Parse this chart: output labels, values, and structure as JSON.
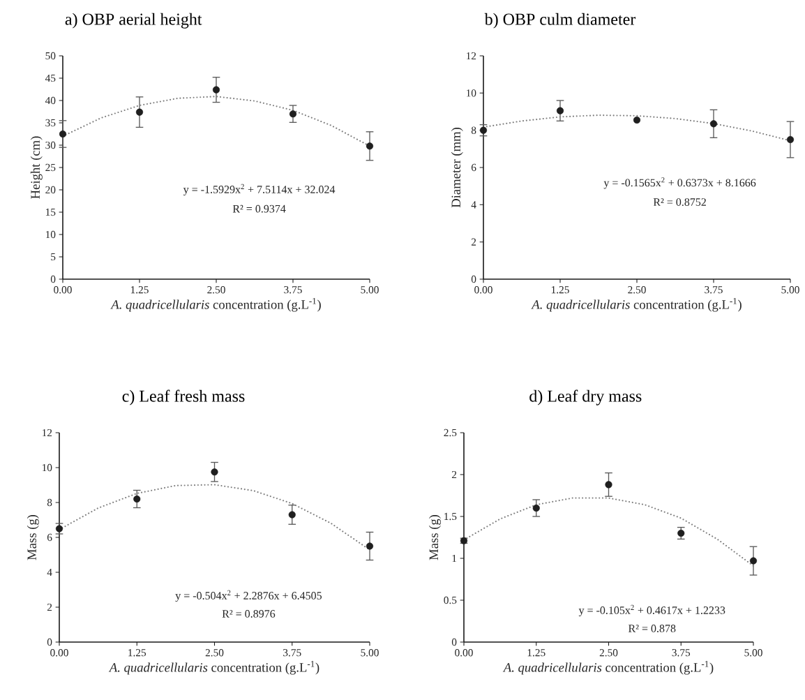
{
  "chart_data": [
    {
      "type": "scatter",
      "title": "a) OBP aerial height",
      "xlabel": "*A. quadricellularis* concentration (g.L$^{-1}$)",
      "ylabel": "Height (cm)",
      "xlim": [
        0,
        5
      ],
      "xticks": [
        {
          "value": 0,
          "label": "0.00"
        },
        {
          "value": 1.25,
          "label": "1.25"
        },
        {
          "value": 2.5,
          "label": "2.50"
        },
        {
          "value": 3.75,
          "label": "3.75"
        },
        {
          "value": 5,
          "label": "5.00"
        }
      ],
      "ylim": [
        0,
        50
      ],
      "yticks": [
        0,
        5,
        10,
        15,
        20,
        25,
        30,
        35,
        40,
        45,
        50
      ],
      "series": [
        {
          "marker": "circle",
          "color": "#1f1f1f",
          "x": [
            0,
            1.25,
            2.5,
            3.75,
            5
          ],
          "values": [
            32.5,
            37.4,
            42.4,
            37.0,
            29.8
          ],
          "errors": [
            3.0,
            3.4,
            2.8,
            1.9,
            3.2
          ]
        },
        {
          "type": "line",
          "line_style": "dotted",
          "color": "#7f7f7f",
          "x": [
            0,
            0.625,
            1.25,
            1.875,
            2.5,
            3.125,
            3.75,
            4.375,
            5
          ],
          "values": [
            32.0,
            36.1,
            38.9,
            40.5,
            40.9,
            39.9,
            37.8,
            34.4,
            29.8
          ]
        }
      ],
      "annotations": [
        "y = -1.5929x$^{2}$ + 7.5114x + 32.024",
        "R² = 0.9374"
      ]
    },
    {
      "type": "scatter",
      "title": "b) OBP culm diameter",
      "xlabel": "*A. quadricellularis* concentration (g.L$^{-1}$)",
      "ylabel": "Diameter (mm)",
      "xlim": [
        0,
        5
      ],
      "xticks": [
        {
          "value": 0,
          "label": "0.00"
        },
        {
          "value": 1.25,
          "label": "1.25"
        },
        {
          "value": 2.5,
          "label": "2.50"
        },
        {
          "value": 3.75,
          "label": "3.75"
        },
        {
          "value": 5,
          "label": "5.00"
        }
      ],
      "ylim": [
        0,
        12
      ],
      "yticks": [
        0,
        2,
        4,
        6,
        8,
        10,
        12
      ],
      "series": [
        {
          "marker": "circle",
          "color": "#1f1f1f",
          "x": [
            0,
            1.25,
            2.5,
            3.75,
            5
          ],
          "values": [
            8.0,
            9.05,
            8.55,
            8.35,
            7.5
          ],
          "errors": [
            0.3,
            0.55,
            null,
            0.75,
            0.97
          ]
        },
        {
          "type": "line",
          "line_style": "dotted",
          "color": "#7f7f7f",
          "x": [
            0,
            0.625,
            1.25,
            1.875,
            2.5,
            3.125,
            3.75,
            4.375,
            5
          ],
          "values": [
            8.17,
            8.5,
            8.72,
            8.81,
            8.78,
            8.63,
            8.36,
            7.96,
            7.44
          ]
        }
      ],
      "annotations": [
        "y = -0.1565x$^{2}$ + 0.6373x + 8.1666",
        "R² = 0.8752"
      ]
    },
    {
      "type": "scatter",
      "title": "c) Leaf fresh mass",
      "xlabel": "*A. quadricellularis* concentration (g.L$^{-1}$)",
      "ylabel": "Mass (g)",
      "xlim": [
        0,
        5
      ],
      "xticks": [
        {
          "value": 0,
          "label": "0.00"
        },
        {
          "value": 1.25,
          "label": "1.25"
        },
        {
          "value": 2.5,
          "label": "2.50"
        },
        {
          "value": 3.75,
          "label": "3.75"
        },
        {
          "value": 5,
          "label": "5.00"
        }
      ],
      "ylim": [
        0,
        12
      ],
      "yticks": [
        0,
        2,
        4,
        6,
        8,
        10,
        12
      ],
      "series": [
        {
          "marker": "circle",
          "color": "#1f1f1f",
          "x": [
            0,
            1.25,
            2.5,
            3.75,
            5
          ],
          "values": [
            6.5,
            8.2,
            9.75,
            7.3,
            5.5
          ],
          "errors": [
            0.3,
            0.5,
            0.55,
            0.55,
            0.8
          ]
        },
        {
          "type": "line",
          "line_style": "dotted",
          "color": "#7f7f7f",
          "x": [
            0,
            0.625,
            1.25,
            1.875,
            2.5,
            3.125,
            3.75,
            4.375,
            5
          ],
          "values": [
            6.45,
            7.68,
            8.52,
            8.97,
            9.02,
            8.68,
            7.94,
            6.81,
            5.29
          ]
        }
      ],
      "annotations": [
        "y = -0.504x$^{2}$ + 2.2876x + 6.4505",
        "R² = 0.8976"
      ]
    },
    {
      "type": "scatter",
      "title": "d) Leaf dry mass",
      "xlabel": "*A. quadricellularis* concentration (g.L$^{-1}$)",
      "ylabel": "Mass (g)",
      "xlim": [
        0,
        5
      ],
      "xticks": [
        {
          "value": 0,
          "label": "0.00"
        },
        {
          "value": 1.25,
          "label": "1.25"
        },
        {
          "value": 2.5,
          "label": "2.50"
        },
        {
          "value": 3.75,
          "label": "3.75"
        },
        {
          "value": 5,
          "label": "5.00"
        }
      ],
      "ylim": [
        0,
        2.5
      ],
      "yticks": [
        0,
        0.5,
        1,
        1.5,
        2,
        2.5
      ],
      "series": [
        {
          "marker": "circle",
          "color": "#1f1f1f",
          "x": [
            0,
            1.25,
            2.5,
            3.75,
            5
          ],
          "values": [
            1.21,
            1.6,
            1.88,
            1.3,
            0.97
          ],
          "errors": [
            0.03,
            0.1,
            0.14,
            0.07,
            0.17
          ]
        },
        {
          "type": "line",
          "line_style": "dotted",
          "color": "#7f7f7f",
          "x": [
            0,
            0.625,
            1.25,
            1.875,
            2.5,
            3.125,
            3.75,
            4.375,
            5
          ],
          "values": [
            1.22,
            1.47,
            1.64,
            1.72,
            1.72,
            1.64,
            1.48,
            1.23,
            0.91
          ]
        }
      ],
      "annotations": [
        "y = -0.105x$^{2}$ + 0.4617x + 1.2233",
        "R² = 0.878"
      ]
    }
  ]
}
